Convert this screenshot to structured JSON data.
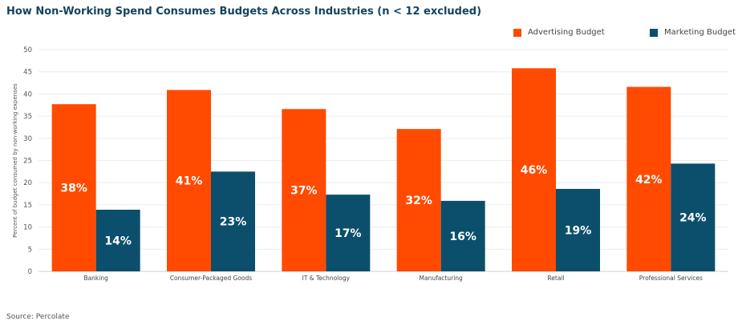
{
  "chart_data": {
    "type": "bar",
    "title": "How Non-Working Spend Consumes Budgets Across Industries (n < 12 excluded)",
    "ylabel": "Percent of budget consumed by non-working expenses",
    "xlabel": "",
    "ylim": [
      0,
      50
    ],
    "yticks": [
      0,
      5,
      10,
      15,
      20,
      25,
      30,
      35,
      40,
      45,
      50
    ],
    "grid": true,
    "legend_position": "top-right",
    "categories": [
      "Banking",
      "Consumer-Packaged Goods",
      "IT & Technology",
      "Manufacturing",
      "Retail",
      "Professional Services"
    ],
    "series": [
      {
        "name": "Advertising Budget",
        "color": "#ff4a00",
        "values": [
          37.7,
          40.9,
          36.6,
          32.1,
          45.8,
          41.6
        ],
        "labels": [
          "38%",
          "41%",
          "37%",
          "32%",
          "46%",
          "42%"
        ]
      },
      {
        "name": "Marketing Budget",
        "color": "#0b4f6c",
        "values": [
          13.9,
          22.5,
          17.3,
          15.9,
          18.6,
          24.3
        ],
        "labels": [
          "14%",
          "23%",
          "17%",
          "16%",
          "19%",
          "24%"
        ]
      }
    ]
  },
  "source": "Source: Percolate"
}
